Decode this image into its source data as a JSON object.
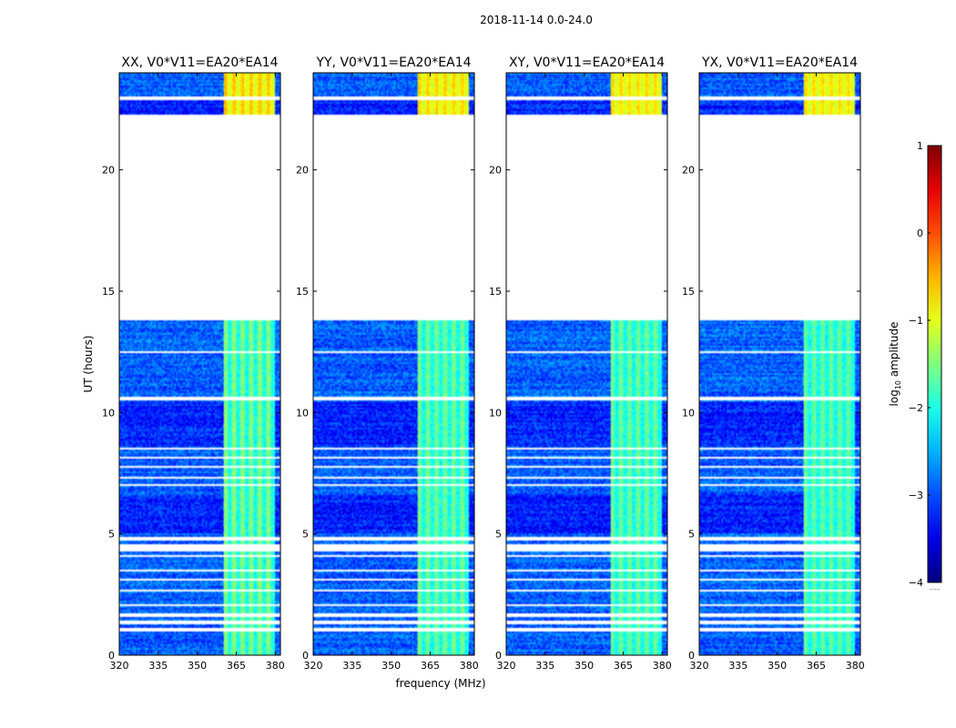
{
  "chart_data": {
    "type": "heatmap",
    "suptitle": "2018-11-14 0.0-24.0",
    "xlabel": "frequency (MHz)",
    "ylabel": "UT (hours)",
    "xlim": [
      320,
      382
    ],
    "ylim": [
      0,
      24
    ],
    "xticks": [
      "320",
      "335",
      "350",
      "365",
      "380"
    ],
    "yticks": [
      "0",
      "5",
      "10",
      "15",
      "20"
    ],
    "panels": [
      {
        "title": "XX, V0*V11=EA20*EA14",
        "intensity": 1.0
      },
      {
        "title": "YY, V0*V11=EA20*EA14",
        "intensity": 0.85
      },
      {
        "title": "XY, V0*V11=EA20*EA14",
        "intensity": 0.8
      },
      {
        "title": "YX, V0*V11=EA20*EA14",
        "intensity": 0.75
      }
    ],
    "colorbar": {
      "label": "log10 amplitude",
      "label_prefix": "log",
      "label_sub": "10",
      "label_suffix": " amplitude",
      "range": [
        -4,
        1
      ],
      "ticks": [
        "1",
        "0",
        "−1",
        "−2",
        "−3",
        "−4"
      ],
      "colormap": "jet",
      "under_label": "......"
    },
    "data_gaps_hours": [
      [
        0.95,
        1.1
      ],
      [
        1.25,
        1.4
      ],
      [
        1.55,
        1.75
      ],
      [
        2.0,
        2.08
      ],
      [
        2.6,
        2.7
      ],
      [
        3.05,
        3.12
      ],
      [
        3.45,
        3.52
      ],
      [
        4.05,
        4.15
      ],
      [
        4.3,
        4.55
      ],
      [
        4.7,
        4.85
      ],
      [
        6.95,
        7.05
      ],
      [
        7.25,
        7.35
      ],
      [
        7.7,
        7.8
      ],
      [
        8.1,
        8.2
      ],
      [
        8.45,
        8.55
      ],
      [
        10.5,
        10.65
      ],
      [
        12.45,
        12.55
      ],
      [
        13.8,
        22.3
      ],
      [
        22.85,
        23.05
      ]
    ],
    "rfi_band_mhz": [
      360,
      380
    ]
  }
}
